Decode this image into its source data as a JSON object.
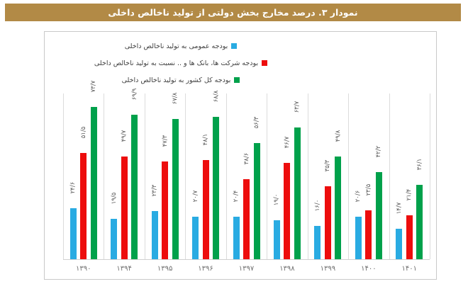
{
  "title_bar": {
    "text": "نمودار ۳. درصد مخارج بخش دولتی از تولید ناخالص داخلی",
    "bg": "#B28A46",
    "text_color": "#ffffff"
  },
  "legend": {
    "position": "top-center",
    "items": [
      {
        "label": "بودجه عمومی به تولید ناخالص داخلی",
        "color": "#29ABE2"
      },
      {
        "label": "بودجه شرکت ها، بانک ها و .. نسبت به تولید ناخالص داخلی",
        "color": "#ED0D0D"
      },
      {
        "label": "بودجه کل کشور به تولید ناخالص داخلی",
        "color": "#00A14B"
      }
    ]
  },
  "chart_data": {
    "type": "bar",
    "title": "نمودار ۳. درصد مخارج بخش دولتی از تولید ناخالص داخلی",
    "categories": [
      "۱۳۹۰",
      "۱۳۹۴",
      "۱۳۹۵",
      "۱۳۹۶",
      "۱۳۹۷",
      "۱۳۹۸",
      "۱۳۹۹",
      "۱۴۰۰",
      "۱۴۰۱"
    ],
    "categories_western": [
      1390,
      1394,
      1395,
      1396,
      1397,
      1398,
      1399,
      1400,
      1401
    ],
    "xlabel": "",
    "ylabel": "",
    "ylim": [
      0,
      81
    ],
    "grid": "vertical-category-separators-only",
    "legend_position": "top-center",
    "series": [
      {
        "name": "بودجه عمومی به تولید ناخالص داخلی",
        "color": "#29ABE2",
        "values": [
          24.6,
          19.5,
          23.3,
          20.7,
          20.4,
          19.0,
          16.0,
          20.6,
          14.7
        ],
        "labels": [
          "۲۴/۶",
          "۱۹/۵",
          "۲۳/۳",
          "۲۰/۷",
          "۲۰/۴",
          "۱۹/۰",
          "۱۶/۰",
          "۲۰/۶",
          "۱۴/۷"
        ]
      },
      {
        "name": "بودجه شرکت ها، بانک ها و .. نسبت به تولید ناخالص داخلی",
        "color": "#ED0D0D",
        "values": [
          51.5,
          49.7,
          47.3,
          48.1,
          38.6,
          46.7,
          35.3,
          23.5,
          21.4
        ],
        "labels": [
          "۵۱/۵",
          "۴۹/۷",
          "۴۷/۳",
          "۴۸/۱",
          "۳۸/۶",
          "۴۶/۷",
          "۳۵/۳",
          "۲۳/۵",
          "۲۱/۴"
        ]
      },
      {
        "name": "بودجه کل کشور به تولید ناخالص داخلی",
        "color": "#00A14B",
        "values": [
          73.7,
          69.9,
          67.8,
          68.8,
          56.3,
          63.7,
          49.8,
          42.2,
          36.1
        ],
        "labels": [
          "۷۳/۷",
          "۶۹/۹",
          "۶۷/۸",
          "۶۸/۸",
          "۵۶/۳",
          "۶۳/۷",
          "۴۹/۸",
          "۴۲/۲",
          "۳۶/۱"
        ]
      }
    ]
  }
}
